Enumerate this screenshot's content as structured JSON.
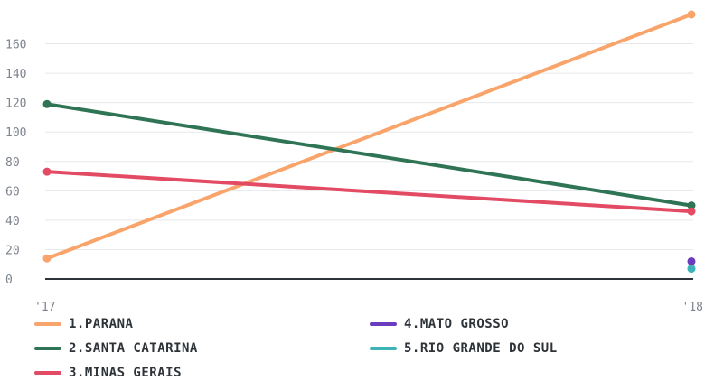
{
  "chart_data": {
    "type": "line",
    "x": [
      "'17",
      "'18"
    ],
    "ylim": [
      0,
      180
    ],
    "yticks": [
      0,
      20,
      40,
      60,
      80,
      100,
      120,
      140,
      160
    ],
    "grid": true,
    "legend_position": "bottom",
    "series": [
      {
        "name": "1.PARANA",
        "color": "#f9a46b",
        "values": [
          14,
          180
        ]
      },
      {
        "name": "2.SANTA CATARINA",
        "color": "#2f7455",
        "values": [
          119,
          50
        ]
      },
      {
        "name": "3.MINAS GERAIS",
        "color": "#e34a63",
        "values": [
          73,
          46
        ]
      },
      {
        "name": "4.MATO GROSSO",
        "color": "#6c3cbf",
        "values": [
          null,
          12
        ]
      },
      {
        "name": "5.RIO GRANDE DO SUL",
        "color": "#3bb3b8",
        "values": [
          null,
          7
        ]
      }
    ]
  }
}
